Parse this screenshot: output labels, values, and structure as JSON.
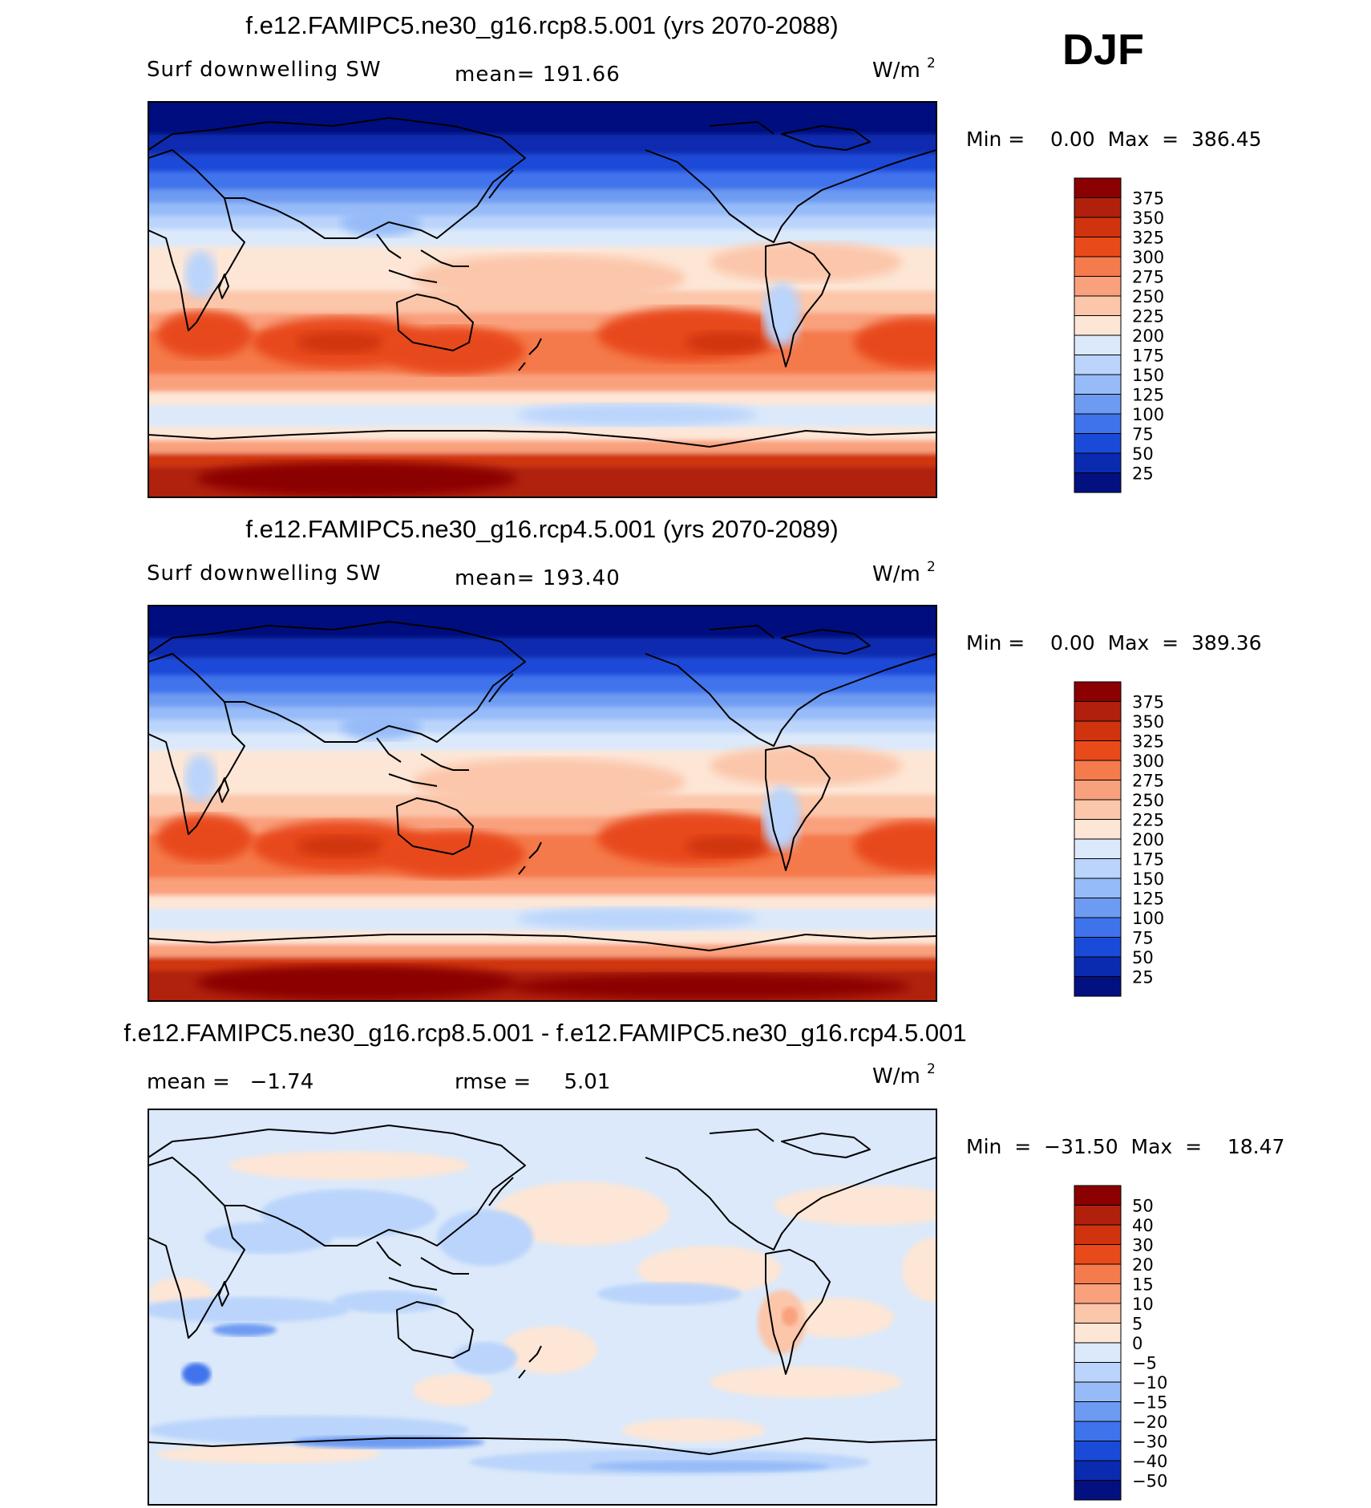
{
  "season": "DJF",
  "unit_base": "W/m",
  "unit_exp": "2",
  "panels": [
    {
      "title": "f.e12.FAMIPC5.ne30_g16.rcp8.5.001 (yrs 2070-2088)",
      "left_label": "Surf downwelling SW",
      "stat_text": "mean= 191.66",
      "minmax_text": "Min =    0.00  Max  =  386.45",
      "legend_labels": [
        "375",
        "350",
        "325",
        "300",
        "275",
        "250",
        "225",
        "200",
        "175",
        "150",
        "125",
        "100",
        "75",
        "50",
        "25"
      ],
      "field": "abs"
    },
    {
      "title": "f.e12.FAMIPC5.ne30_g16.rcp4.5.001 (yrs 2070-2089)",
      "left_label": "Surf downwelling SW",
      "stat_text": "mean= 193.40",
      "minmax_text": "Min =    0.00  Max  =  389.36",
      "legend_labels": [
        "375",
        "350",
        "325",
        "300",
        "275",
        "250",
        "225",
        "200",
        "175",
        "150",
        "125",
        "100",
        "75",
        "50",
        "25"
      ],
      "field": "abs"
    },
    {
      "title": "f.e12.FAMIPC5.ne30_g16.rcp8.5.001 - f.e12.FAMIPC5.ne30_g16.rcp4.5.001",
      "left_label": "mean =   −1.74",
      "stat_text": "rmse =     5.01",
      "minmax_text": "Min  =  −31.50  Max  =    18.47",
      "legend_labels": [
        "50",
        "40",
        "30",
        "20",
        "15",
        "10",
        "5",
        "0",
        "−5",
        "−10",
        "−15",
        "−20",
        "−30",
        "−40",
        "−50"
      ],
      "field": "diff"
    }
  ],
  "colors": {
    "scale": [
      "#8b0000",
      "#b0200c",
      "#d0340f",
      "#e84a1a",
      "#f57a4c",
      "#f9a07d",
      "#fbc6aa",
      "#fde6d6",
      "#dbe9fa",
      "#bad4fb",
      "#96bbf8",
      "#6e9bf2",
      "#3f73ec",
      "#1a4ad8",
      "#0a2bb0",
      "#03107f"
    ],
    "land_outline": "#000000",
    "frame": "#000000"
  }
}
